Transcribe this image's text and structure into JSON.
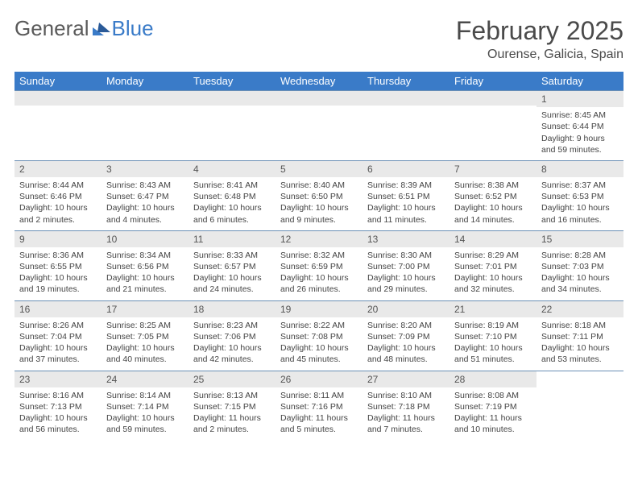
{
  "logo": {
    "part1": "General",
    "part2": "Blue"
  },
  "month_title": "February 2025",
  "location": "Ourense, Galicia, Spain",
  "day_headers": [
    "Sunday",
    "Monday",
    "Tuesday",
    "Wednesday",
    "Thursday",
    "Friday",
    "Saturday"
  ],
  "colors": {
    "header_bg": "#3a7bc8",
    "header_text": "#ffffff",
    "num_bar_bg": "#e9e9e9",
    "border": "#6a8fb5",
    "text": "#444444",
    "title_text": "#4a4a4a",
    "logo_gray": "#5a5a5a",
    "logo_blue": "#3a7bc8"
  },
  "weeks": [
    [
      {
        "empty": true
      },
      {
        "empty": true
      },
      {
        "empty": true
      },
      {
        "empty": true
      },
      {
        "empty": true
      },
      {
        "empty": true
      },
      {
        "num": "1",
        "sunrise": "Sunrise: 8:45 AM",
        "sunset": "Sunset: 6:44 PM",
        "daylight": "Daylight: 9 hours and 59 minutes."
      }
    ],
    [
      {
        "num": "2",
        "sunrise": "Sunrise: 8:44 AM",
        "sunset": "Sunset: 6:46 PM",
        "daylight": "Daylight: 10 hours and 2 minutes."
      },
      {
        "num": "3",
        "sunrise": "Sunrise: 8:43 AM",
        "sunset": "Sunset: 6:47 PM",
        "daylight": "Daylight: 10 hours and 4 minutes."
      },
      {
        "num": "4",
        "sunrise": "Sunrise: 8:41 AM",
        "sunset": "Sunset: 6:48 PM",
        "daylight": "Daylight: 10 hours and 6 minutes."
      },
      {
        "num": "5",
        "sunrise": "Sunrise: 8:40 AM",
        "sunset": "Sunset: 6:50 PM",
        "daylight": "Daylight: 10 hours and 9 minutes."
      },
      {
        "num": "6",
        "sunrise": "Sunrise: 8:39 AM",
        "sunset": "Sunset: 6:51 PM",
        "daylight": "Daylight: 10 hours and 11 minutes."
      },
      {
        "num": "7",
        "sunrise": "Sunrise: 8:38 AM",
        "sunset": "Sunset: 6:52 PM",
        "daylight": "Daylight: 10 hours and 14 minutes."
      },
      {
        "num": "8",
        "sunrise": "Sunrise: 8:37 AM",
        "sunset": "Sunset: 6:53 PM",
        "daylight": "Daylight: 10 hours and 16 minutes."
      }
    ],
    [
      {
        "num": "9",
        "sunrise": "Sunrise: 8:36 AM",
        "sunset": "Sunset: 6:55 PM",
        "daylight": "Daylight: 10 hours and 19 minutes."
      },
      {
        "num": "10",
        "sunrise": "Sunrise: 8:34 AM",
        "sunset": "Sunset: 6:56 PM",
        "daylight": "Daylight: 10 hours and 21 minutes."
      },
      {
        "num": "11",
        "sunrise": "Sunrise: 8:33 AM",
        "sunset": "Sunset: 6:57 PM",
        "daylight": "Daylight: 10 hours and 24 minutes."
      },
      {
        "num": "12",
        "sunrise": "Sunrise: 8:32 AM",
        "sunset": "Sunset: 6:59 PM",
        "daylight": "Daylight: 10 hours and 26 minutes."
      },
      {
        "num": "13",
        "sunrise": "Sunrise: 8:30 AM",
        "sunset": "Sunset: 7:00 PM",
        "daylight": "Daylight: 10 hours and 29 minutes."
      },
      {
        "num": "14",
        "sunrise": "Sunrise: 8:29 AM",
        "sunset": "Sunset: 7:01 PM",
        "daylight": "Daylight: 10 hours and 32 minutes."
      },
      {
        "num": "15",
        "sunrise": "Sunrise: 8:28 AM",
        "sunset": "Sunset: 7:03 PM",
        "daylight": "Daylight: 10 hours and 34 minutes."
      }
    ],
    [
      {
        "num": "16",
        "sunrise": "Sunrise: 8:26 AM",
        "sunset": "Sunset: 7:04 PM",
        "daylight": "Daylight: 10 hours and 37 minutes."
      },
      {
        "num": "17",
        "sunrise": "Sunrise: 8:25 AM",
        "sunset": "Sunset: 7:05 PM",
        "daylight": "Daylight: 10 hours and 40 minutes."
      },
      {
        "num": "18",
        "sunrise": "Sunrise: 8:23 AM",
        "sunset": "Sunset: 7:06 PM",
        "daylight": "Daylight: 10 hours and 42 minutes."
      },
      {
        "num": "19",
        "sunrise": "Sunrise: 8:22 AM",
        "sunset": "Sunset: 7:08 PM",
        "daylight": "Daylight: 10 hours and 45 minutes."
      },
      {
        "num": "20",
        "sunrise": "Sunrise: 8:20 AM",
        "sunset": "Sunset: 7:09 PM",
        "daylight": "Daylight: 10 hours and 48 minutes."
      },
      {
        "num": "21",
        "sunrise": "Sunrise: 8:19 AM",
        "sunset": "Sunset: 7:10 PM",
        "daylight": "Daylight: 10 hours and 51 minutes."
      },
      {
        "num": "22",
        "sunrise": "Sunrise: 8:18 AM",
        "sunset": "Sunset: 7:11 PM",
        "daylight": "Daylight: 10 hours and 53 minutes."
      }
    ],
    [
      {
        "num": "23",
        "sunrise": "Sunrise: 8:16 AM",
        "sunset": "Sunset: 7:13 PM",
        "daylight": "Daylight: 10 hours and 56 minutes."
      },
      {
        "num": "24",
        "sunrise": "Sunrise: 8:14 AM",
        "sunset": "Sunset: 7:14 PM",
        "daylight": "Daylight: 10 hours and 59 minutes."
      },
      {
        "num": "25",
        "sunrise": "Sunrise: 8:13 AM",
        "sunset": "Sunset: 7:15 PM",
        "daylight": "Daylight: 11 hours and 2 minutes."
      },
      {
        "num": "26",
        "sunrise": "Sunrise: 8:11 AM",
        "sunset": "Sunset: 7:16 PM",
        "daylight": "Daylight: 11 hours and 5 minutes."
      },
      {
        "num": "27",
        "sunrise": "Sunrise: 8:10 AM",
        "sunset": "Sunset: 7:18 PM",
        "daylight": "Daylight: 11 hours and 7 minutes."
      },
      {
        "num": "28",
        "sunrise": "Sunrise: 8:08 AM",
        "sunset": "Sunset: 7:19 PM",
        "daylight": "Daylight: 11 hours and 10 minutes."
      },
      {
        "empty": true,
        "noBar": true
      }
    ]
  ]
}
